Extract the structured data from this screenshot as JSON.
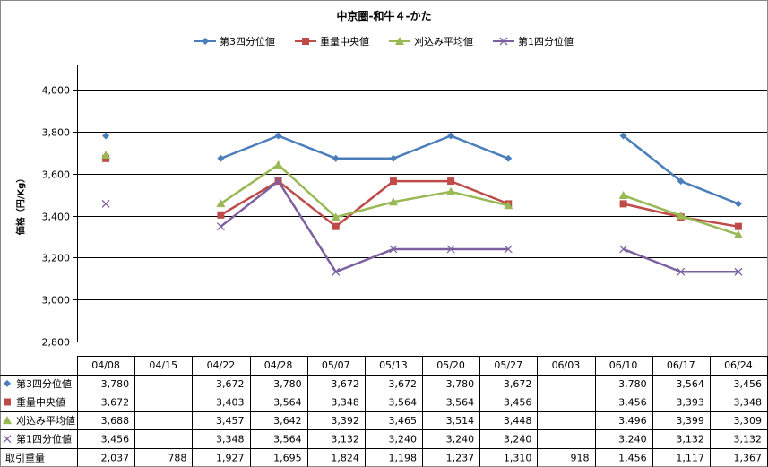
{
  "chart_data": {
    "type": "line",
    "title": "中京圏-和牛４-かた",
    "ylabel": "価格（円/Kg）",
    "xlabel": "",
    "ylim": [
      2800,
      4000
    ],
    "y_ticks": [
      2800,
      3000,
      3200,
      3400,
      3600,
      3800,
      4000
    ],
    "y_tick_labels": [
      "2,800",
      "3,000",
      "3,200",
      "3,400",
      "3,600",
      "3,800",
      "4,000"
    ],
    "grid": true,
    "legend_position": "top",
    "categories": [
      "04/08",
      "04/15",
      "04/22",
      "04/28",
      "05/07",
      "05/13",
      "05/20",
      "05/27",
      "06/03",
      "06/10",
      "06/17",
      "06/24"
    ],
    "series": [
      {
        "name": "第3四分位値",
        "color": "#4a7ebb",
        "marker": "diamond",
        "values": [
          3780,
          null,
          3672,
          3780,
          3672,
          3672,
          3780,
          3672,
          null,
          3780,
          3564,
          3456
        ],
        "labels": [
          "3,780",
          "",
          "3,672",
          "3,780",
          "3,672",
          "3,672",
          "3,780",
          "3,672",
          "",
          "3,780",
          "3,564",
          "3,456"
        ]
      },
      {
        "name": "重量中央値",
        "color": "#be4b48",
        "marker": "square",
        "values": [
          3672,
          null,
          3403,
          3564,
          3348,
          3564,
          3564,
          3456,
          null,
          3456,
          3393,
          3348
        ],
        "labels": [
          "3,672",
          "",
          "3,403",
          "3,564",
          "3,348",
          "3,564",
          "3,564",
          "3,456",
          "",
          "3,456",
          "3,393",
          "3,348"
        ]
      },
      {
        "name": "刈込み平均値",
        "color": "#98b954",
        "marker": "triangle",
        "values": [
          3688,
          null,
          3457,
          3642,
          3392,
          3465,
          3514,
          3448,
          null,
          3496,
          3399,
          3309
        ],
        "labels": [
          "3,688",
          "",
          "3,457",
          "3,642",
          "3,392",
          "3,465",
          "3,514",
          "3,448",
          "",
          "3,496",
          "3,399",
          "3,309"
        ]
      },
      {
        "name": "第1四分位値",
        "color": "#7d60a0",
        "marker": "x",
        "values": [
          3456,
          null,
          3348,
          3564,
          3132,
          3240,
          3240,
          3240,
          null,
          3240,
          3132,
          3132
        ],
        "labels": [
          "3,456",
          "",
          "3,348",
          "3,564",
          "3,132",
          "3,240",
          "3,240",
          "3,240",
          "",
          "3,240",
          "3,132",
          "3,132"
        ]
      }
    ],
    "extra_rows": [
      {
        "name": "取引重量",
        "values": [
          2037,
          788,
          1927,
          1695,
          1824,
          1198,
          1237,
          1310,
          918,
          1456,
          1117,
          1367
        ],
        "labels": [
          "2,037",
          "788",
          "1,927",
          "1,695",
          "1,824",
          "1,198",
          "1,237",
          "1,310",
          "918",
          "1,456",
          "1,117",
          "1,367"
        ]
      }
    ]
  }
}
